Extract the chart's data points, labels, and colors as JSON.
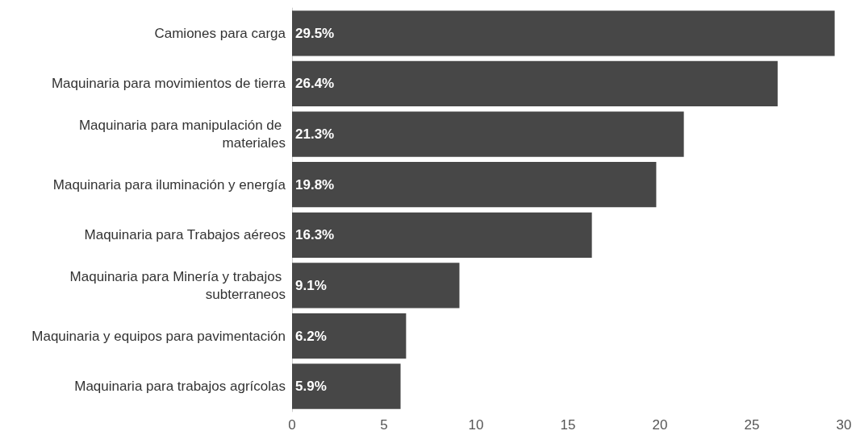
{
  "chart_data": {
    "type": "bar",
    "orientation": "horizontal",
    "categories": [
      "Camiones para carga",
      "Maquinaria para movimientos de tierra",
      "Maquinaria para manipulación de materiales",
      "Maquinaria para iluminación y energía",
      "Maquinaria para Trabajos aéreos",
      "Maquinaria para Minería y trabajos subterraneos",
      "Maquinaria y equipos para pavimentación",
      "Maquinaria para trabajos agrícolas"
    ],
    "values": [
      29.5,
      26.4,
      21.3,
      19.8,
      16.3,
      9.1,
      6.2,
      5.9
    ],
    "value_labels": [
      "29.5%",
      "26.4%",
      "21.3%",
      "19.8%",
      "16.3%",
      "9.1%",
      "6.2%",
      "5.9%"
    ],
    "color": "#474747",
    "xlim": [
      0,
      30
    ],
    "xticks": [
      0,
      5,
      10,
      15,
      20,
      25,
      30
    ],
    "grid": false
  }
}
